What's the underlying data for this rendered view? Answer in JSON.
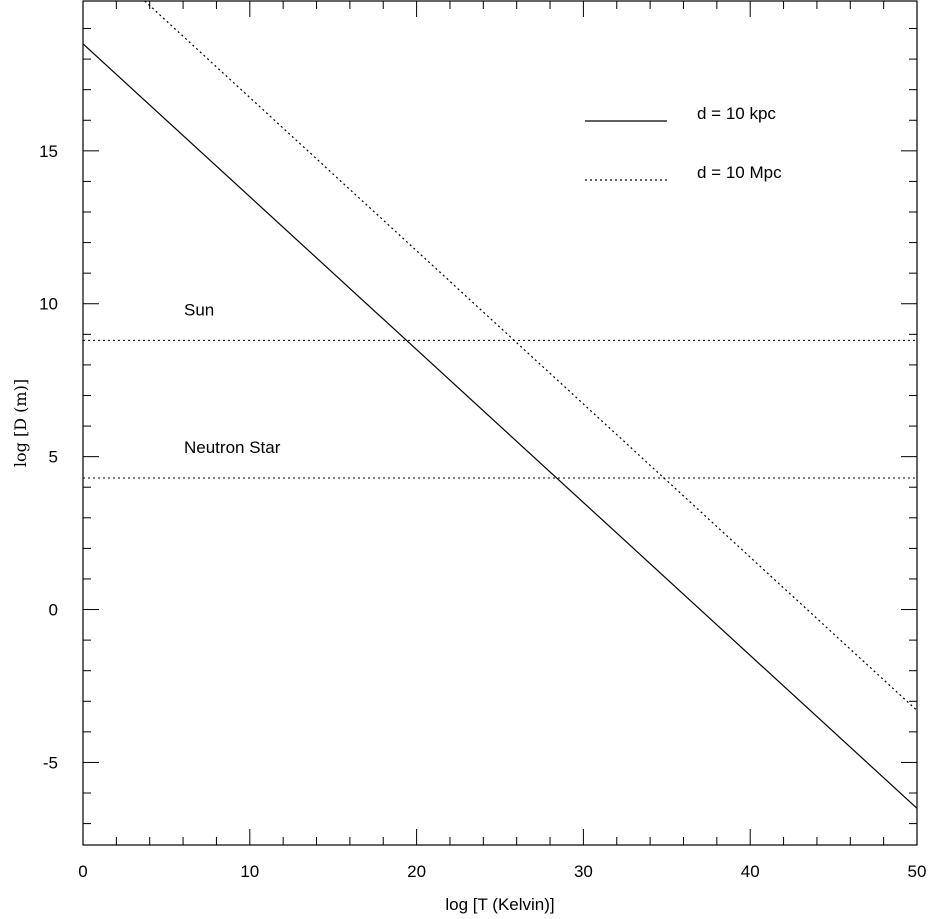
{
  "chart_data": {
    "type": "line",
    "title": "",
    "xlabel": "log [T (Kelvin)]",
    "ylabel": "log [D (m)]",
    "xlim": [
      0,
      50
    ],
    "ylim": [
      -7.7,
      19.9
    ],
    "x_ticks_major": [
      0,
      10,
      20,
      30,
      40,
      50
    ],
    "x_tick_labels": [
      "0",
      "10",
      "20",
      "30",
      "40",
      "50"
    ],
    "x_minor_step": 2,
    "y_ticks_major": [
      -5,
      0,
      5,
      10,
      15
    ],
    "y_tick_labels": [
      "-5",
      "0",
      "5",
      "10",
      "15"
    ],
    "y_minor_step": 1,
    "grid": false,
    "legend_position": "top-right",
    "series": [
      {
        "name": "d = 10 kpc",
        "style": "solid",
        "x": [
          0,
          50
        ],
        "y": [
          18.5,
          -6.5
        ]
      },
      {
        "name": "d = 10 Mpc",
        "style": "dotted",
        "x": [
          3.7,
          50
        ],
        "y": [
          19.9,
          -3.3
        ]
      }
    ],
    "reference_lines": [
      {
        "label": "Sun",
        "y": 8.8,
        "style": "dotted"
      },
      {
        "label": "Neutron Star",
        "y": 4.3,
        "style": "dotted"
      }
    ],
    "colors": {
      "line": "#000000",
      "background": "#ffffff"
    }
  }
}
